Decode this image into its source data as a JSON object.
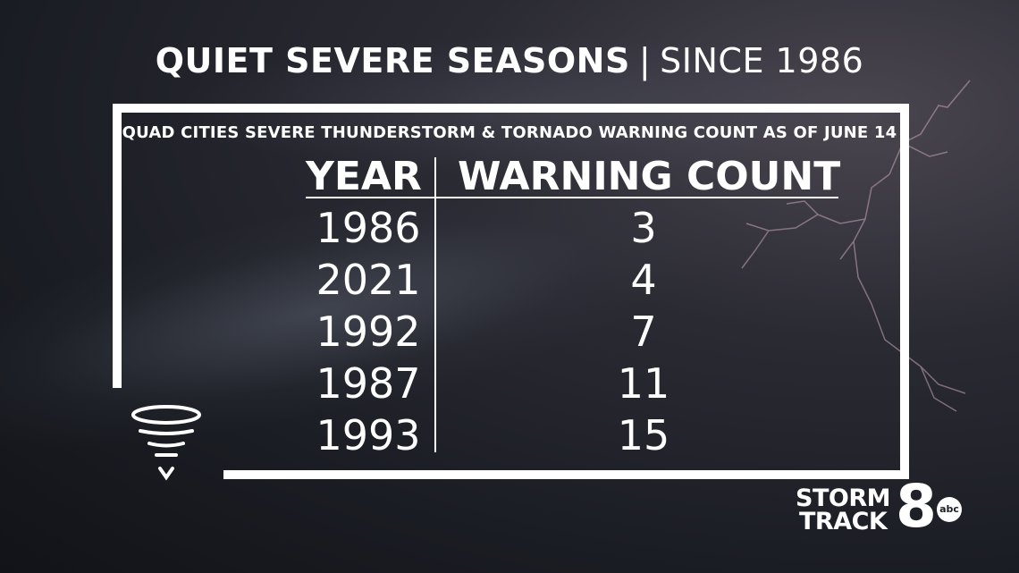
{
  "title": {
    "main": "QUIET SEVERE SEASONS",
    "separator": "|",
    "secondary": "SINCE 1986"
  },
  "subtitle": "QUAD CITIES SEVERE THUNDERSTORM & TORNADO WARNING COUNT AS OF JUNE 14",
  "table": {
    "headers": {
      "year": "YEAR",
      "count": "WARNING COUNT"
    },
    "rows": [
      {
        "year": "1986",
        "count": "3"
      },
      {
        "year": "2021",
        "count": "4"
      },
      {
        "year": "1992",
        "count": "7"
      },
      {
        "year": "1987",
        "count": "11"
      },
      {
        "year": "1993",
        "count": "15"
      }
    ]
  },
  "logo": {
    "line1": "STORM",
    "line2": "TRACK",
    "number": "8",
    "network": "abc"
  },
  "icons": {
    "tornado": "tornado-icon"
  }
}
